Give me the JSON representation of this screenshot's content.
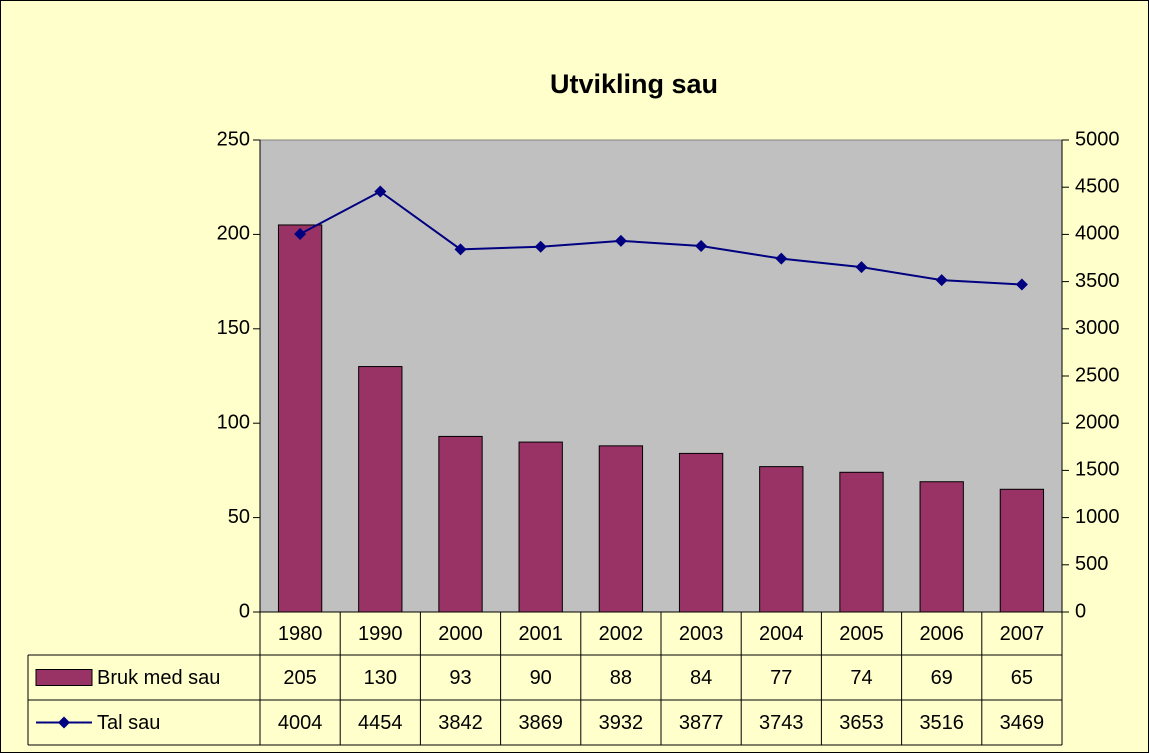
{
  "chart_data": {
    "type": "bar_line",
    "title": "Utvikling sau",
    "categories": [
      "1980",
      "1990",
      "2000",
      "2001",
      "2002",
      "2003",
      "2004",
      "2005",
      "2006",
      "2007"
    ],
    "series": [
      {
        "name": "Bruk med sau",
        "type": "bar",
        "color": "#993366",
        "values": [
          205,
          130,
          93,
          90,
          88,
          84,
          77,
          74,
          69,
          65
        ]
      },
      {
        "name": "Tal sau",
        "type": "line",
        "axis": "y2",
        "color": "#000080",
        "values": [
          4004,
          4454,
          3842,
          3869,
          3932,
          3877,
          3743,
          3653,
          3516,
          3469
        ]
      }
    ],
    "ylim": [
      0,
      250
    ],
    "yticks": [
      0,
      50,
      100,
      150,
      200,
      250
    ],
    "y2lim": [
      0,
      5000
    ],
    "y2ticks": [
      0,
      500,
      1000,
      1500,
      2000,
      2500,
      3000,
      3500,
      4000,
      4500,
      5000
    ],
    "grid": false,
    "data_table": true
  }
}
